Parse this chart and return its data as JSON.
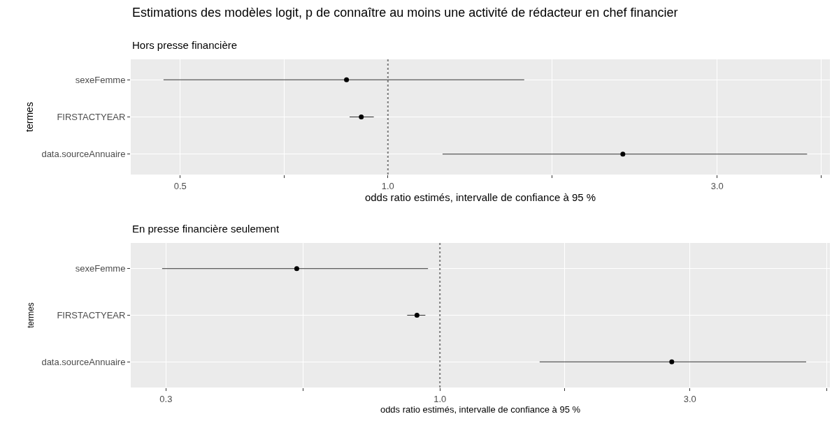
{
  "chart_data": [
    {
      "type": "scatter",
      "orientation": "horizontal",
      "title": "Estimations des modèles logit, p de connaître au moins une activité de rédacteur en chef financier",
      "subtitle": "Hors presse financière",
      "xlabel": "odds ratio estimés, intervalle de confiance à 95 %",
      "ylabel": "termes",
      "categories": [
        "sexeFemme",
        "FIRSTACTYEAR",
        "data.sourceAnnuaire"
      ],
      "series": [
        {
          "color": "#000000",
          "values": [
            0.871,
            0.915,
            2.19
          ],
          "errors": [
            [
              0.473,
              1.576
            ],
            [
              0.88,
              0.954
            ],
            [
              1.2,
              4.05
            ]
          ]
        }
      ],
      "log": "x",
      "xlim": [
        0.424,
        4.37
      ],
      "xticks": [
        0.5,
        {
          "value": 0.707,
          "label": null
        },
        {
          "value": 1,
          "label": "1.0"
        },
        {
          "value": 1.73,
          "label": null
        },
        {
          "value": 3,
          "label": "3.0"
        },
        {
          "value": 4.24,
          "label": null
        }
      ],
      "ref_lines": [
        {
          "axis": "x",
          "value": 1.0,
          "color": "#7f7f7f",
          "line_style": "dotted"
        }
      ],
      "grid": true,
      "marker": "circle"
    },
    {
      "type": "scatter",
      "orientation": "horizontal",
      "title": "En presse financière seulement",
      "xlabel": "odds ratio estimés, intervalle de confiance à 95 %",
      "ylabel": "termes",
      "categories": [
        "sexeFemme",
        "FIRSTACTYEAR",
        "data.sourceAnnuaire"
      ],
      "series": [
        {
          "color": "#000000",
          "values": [
            0.533,
            0.904,
            2.77
          ],
          "errors": [
            [
              0.295,
              0.949
            ],
            [
              0.866,
              0.938
            ],
            [
              1.55,
              5.0
            ]
          ]
        }
      ],
      "log": "x",
      "xlim": [
        0.257,
        5.55
      ],
      "xticks": [
        0.3,
        {
          "value": 0.548,
          "label": null
        },
        {
          "value": 1,
          "label": "1.0"
        },
        {
          "value": 1.73,
          "label": null
        },
        {
          "value": 3,
          "label": "3.0"
        },
        {
          "value": 5.48,
          "label": null
        }
      ],
      "ref_lines": [
        {
          "axis": "x",
          "value": 1.0,
          "color": "#7f7f7f",
          "line_style": "dotted"
        }
      ],
      "grid": true,
      "marker": "circle"
    }
  ]
}
